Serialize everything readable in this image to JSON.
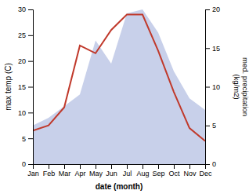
{
  "chart_data": {
    "type": "line",
    "categories": [
      "Jan",
      "Feb",
      "Mar",
      "Apr",
      "May",
      "Jun",
      "Jul",
      "Aug",
      "Sep",
      "Oct",
      "Nov",
      "Dec"
    ],
    "xlabel": "date (month)",
    "ylabel": "max temp (C)",
    "y2label": "med. precipitation\n(kg/m2)",
    "ylim": [
      0,
      30
    ],
    "yticks": [
      0,
      5,
      10,
      15,
      20,
      25,
      30
    ],
    "y2lim": [
      0,
      20
    ],
    "y2ticks": [
      0,
      5,
      10,
      15,
      20
    ],
    "series": [
      {
        "type": "area",
        "axis": "y2",
        "color": "#c8d0ea",
        "values": [
          5.0,
          6.0,
          7.5,
          9.0,
          16.0,
          13.0,
          19.5,
          20.0,
          17.0,
          12.0,
          8.5,
          7.0
        ]
      },
      {
        "type": "line",
        "axis": "y",
        "color": "#c0392b",
        "values": [
          6.5,
          7.5,
          11.0,
          23.0,
          21.5,
          26.0,
          29.0,
          29.0,
          22.0,
          14.0,
          7.0,
          4.5
        ]
      }
    ]
  }
}
